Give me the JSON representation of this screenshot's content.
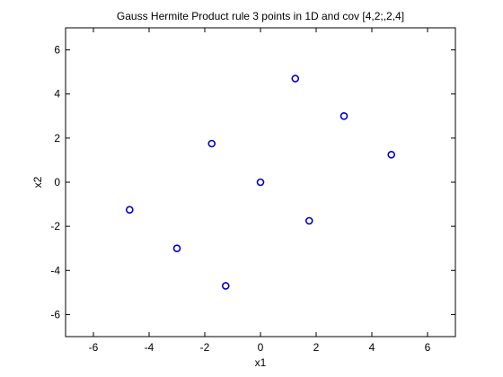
{
  "chart_data": {
    "type": "scatter",
    "title": "Gauss Hermite Product rule 3 points in 1D and cov [4,2;,2,4]",
    "xlabel": "x1",
    "ylabel": "x2",
    "xlim": [
      -7,
      7
    ],
    "ylim": [
      -7,
      7
    ],
    "xticks": [
      -6,
      -4,
      -2,
      0,
      2,
      4,
      6
    ],
    "yticks": [
      -6,
      -4,
      -2,
      0,
      2,
      4,
      6
    ],
    "xtick_labels": [
      "-6",
      "-4",
      "-2",
      "0",
      "2",
      "4",
      "6"
    ],
    "ytick_labels": [
      "-6",
      "-4",
      "-2",
      "0",
      "2",
      "4",
      "6"
    ],
    "grid": false,
    "marker": "circle-open",
    "marker_color": "#0000cc",
    "points": [
      {
        "x": -4.7,
        "y": -1.25
      },
      {
        "x": -3.0,
        "y": -3.0
      },
      {
        "x": -1.75,
        "y": 1.75
      },
      {
        "x": -1.25,
        "y": -4.7
      },
      {
        "x": 0.0,
        "y": 0.0
      },
      {
        "x": 1.25,
        "y": 4.7
      },
      {
        "x": 1.75,
        "y": -1.75
      },
      {
        "x": 3.0,
        "y": 3.0
      },
      {
        "x": 4.7,
        "y": 1.25
      }
    ]
  }
}
